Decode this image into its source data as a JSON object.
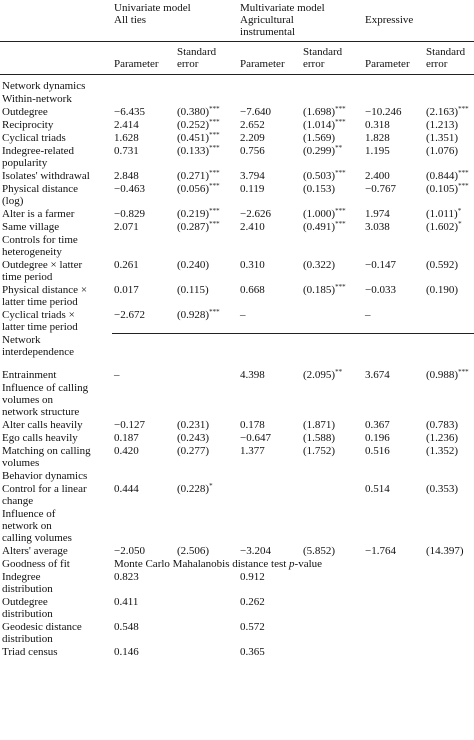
{
  "columns": {
    "univariate": [
      "Univariate model",
      "All ties"
    ],
    "multivariate": [
      "Multivariate model",
      "Agricultural",
      "instrumental"
    ],
    "expressive": "Expressive",
    "parameter": "Parameter",
    "stderr": [
      "Standard",
      "error"
    ]
  },
  "rows": [
    {
      "label": [
        "Network dynamics"
      ],
      "cells": [
        "",
        "",
        "",
        "",
        "",
        ""
      ]
    },
    {
      "label": [
        "Within-network"
      ],
      "cells": [
        "",
        "",
        "",
        "",
        "",
        ""
      ]
    },
    {
      "label": [
        "Outdegree"
      ],
      "cells": [
        "−6.435",
        "(0.380)",
        "−7.640",
        "(1.698)",
        "−10.246",
        "(2.163)"
      ],
      "sup": [
        "",
        "***",
        "",
        "***",
        "",
        "***"
      ]
    },
    {
      "label": [
        "Reciprocity"
      ],
      "cells": [
        "2.414",
        "(0.252)",
        "2.652",
        "(1.014)",
        "0.318",
        "(1.213)"
      ],
      "sup": [
        "",
        "***",
        "",
        "***",
        "",
        ""
      ]
    },
    {
      "label": [
        "Cyclical triads"
      ],
      "cells": [
        "1.628",
        "(0.451)",
        "2.209",
        "(1.569)",
        "1.828",
        "(1.351)"
      ],
      "sup": [
        "",
        "***",
        "",
        "",
        "",
        ""
      ]
    },
    {
      "label": [
        "Indegree-related",
        "popularity"
      ],
      "cells": [
        "0.731",
        "(0.133)",
        "0.756",
        "(0.299)",
        "1.195",
        "(1.076)"
      ],
      "sup": [
        "",
        "***",
        "",
        "**",
        "",
        ""
      ]
    },
    {
      "label": [
        "Isolates' withdrawal"
      ],
      "cells": [
        "2.848",
        "(0.271)",
        "3.794",
        "(0.503)",
        "2.400",
        "(0.844)"
      ],
      "sup": [
        "",
        "***",
        "",
        "***",
        "",
        "***"
      ]
    },
    {
      "label": [
        "Physical distance",
        "(log)"
      ],
      "cells": [
        "−0.463",
        "(0.056)",
        "0.119",
        "(0.153)",
        "−0.767",
        "(0.105)"
      ],
      "sup": [
        "",
        "***",
        "",
        "",
        "",
        "***"
      ]
    },
    {
      "label": [
        "Alter is a farmer"
      ],
      "cells": [
        "−0.829",
        "(0.219)",
        "−2.626",
        "(1.000)",
        "1.974",
        "(1.011)"
      ],
      "sup": [
        "",
        "***",
        "",
        "***",
        "",
        "*"
      ]
    },
    {
      "label": [
        "Same village"
      ],
      "cells": [
        "2.071",
        "(0.287)",
        "2.410",
        "(0.491)",
        "3.038",
        "(1.602)"
      ],
      "sup": [
        "",
        "***",
        "",
        "***",
        "",
        "*"
      ]
    },
    {
      "label": [
        "Controls for time",
        "heterogeneity"
      ],
      "cells": [
        "",
        "",
        "",
        "",
        "",
        ""
      ]
    },
    {
      "label": [
        "Outdegree × latter",
        "time period"
      ],
      "cells": [
        "0.261",
        "(0.240)",
        "0.310",
        "(0.322)",
        "−0.147",
        "(0.592)"
      ]
    },
    {
      "label": [
        "Physical distance ×",
        "latter time period"
      ],
      "cells": [
        "0.017",
        "(0.115)",
        "0.668",
        "(0.185)",
        "−0.033",
        "(0.190)"
      ],
      "sup": [
        "",
        "",
        "",
        "***",
        "",
        ""
      ]
    },
    {
      "label": [
        "Cyclical triads ×",
        "latter time period"
      ],
      "cells": [
        "−2.672",
        "(0.928)",
        "–",
        "",
        "–",
        ""
      ],
      "sup": [
        "",
        "***",
        "",
        "",
        "",
        ""
      ],
      "underline": true
    },
    {
      "label": [
        "Network",
        "interdependence"
      ],
      "cells": [
        "",
        "",
        "",
        "",
        "",
        ""
      ]
    },
    {
      "label": [
        "Entrainment"
      ],
      "cells": [
        "–",
        "",
        "4.398",
        "(2.095)",
        "3.674",
        "(0.988)"
      ],
      "sup": [
        "",
        "",
        "",
        "**",
        "",
        "***"
      ],
      "tall": true
    },
    {
      "label": [
        "Influence of calling",
        "volumes on",
        "network structure"
      ],
      "cells": [
        "",
        "",
        "",
        "",
        "",
        ""
      ]
    },
    {
      "label": [
        "Alter calls heavily"
      ],
      "cells": [
        "−0.127",
        "(0.231)",
        "0.178",
        "(1.871)",
        "0.367",
        "(0.783)"
      ]
    },
    {
      "label": [
        "Ego calls heavily"
      ],
      "cells": [
        "0.187",
        "(0.243)",
        "−0.647",
        "(1.588)",
        "0.196",
        "(1.236)"
      ]
    },
    {
      "label": [
        "Matching on calling",
        "volumes"
      ],
      "cells": [
        "0.420",
        "(0.277)",
        "1.377",
        "(1.752)",
        "0.516",
        "(1.352)"
      ]
    },
    {
      "label": [
        "Behavior dynamics"
      ],
      "cells": [
        "",
        "",
        "",
        "",
        "",
        ""
      ]
    },
    {
      "label": [
        "Control for a linear",
        "change"
      ],
      "cells": [
        "0.444",
        "(0.228)",
        "",
        "",
        "0.514",
        "(0.353)"
      ],
      "sup": [
        "",
        "*",
        "",
        "",
        "",
        ""
      ]
    },
    {
      "label": [
        "Influence of",
        "network on",
        "calling volumes"
      ],
      "cells": [
        "",
        "",
        "",
        "",
        "",
        ""
      ]
    },
    {
      "label": [
        "Alters' average"
      ],
      "cells": [
        "−2.050",
        "(2.506)",
        "−3.204",
        "(5.852)",
        "−1.764",
        "(14.397)"
      ]
    },
    {
      "label": [
        "Goodness of fit"
      ],
      "gof": "Monte Carlo Mahalanobis distance test",
      "gof_italic": "p",
      "gof_tail": "-value"
    },
    {
      "label": [
        "Indegree",
        "distribution"
      ],
      "cells": [
        "0.823",
        "",
        "0.912",
        "",
        "",
        ""
      ]
    },
    {
      "label": [
        "Outdegree",
        "distribution"
      ],
      "cells": [
        "0.411",
        "",
        "0.262",
        "",
        "",
        ""
      ]
    },
    {
      "label": [
        "Geodesic distance",
        "distribution"
      ],
      "cells": [
        "0.548",
        "",
        "0.572",
        "",
        "",
        ""
      ]
    },
    {
      "label": [
        "Triad census"
      ],
      "cells": [
        "0.146",
        "",
        "0.365",
        "",
        "",
        ""
      ]
    }
  ]
}
